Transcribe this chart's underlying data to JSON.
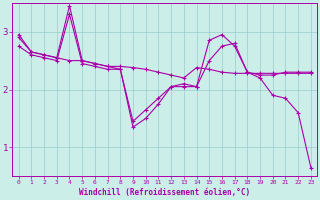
{
  "background_color": "#cceee8",
  "line_color": "#aa00aa",
  "xlabel": "Windchill (Refroidissement éolien,°C)",
  "xlabel_color": "#aa00aa",
  "tick_color": "#aa00aa",
  "grid_color": "#99cccc",
  "ylim": [
    0.5,
    3.5
  ],
  "xlim": [
    -0.5,
    23.5
  ],
  "yticks": [
    1,
    2,
    3
  ],
  "xticks": [
    0,
    1,
    2,
    3,
    4,
    5,
    6,
    7,
    8,
    9,
    10,
    11,
    12,
    13,
    14,
    15,
    16,
    17,
    18,
    19,
    20,
    21,
    22,
    23
  ],
  "series": [
    {
      "x": [
        0,
        1,
        2,
        3,
        4,
        5,
        6,
        7,
        8,
        9,
        10,
        11,
        12,
        13,
        14,
        15,
        16,
        17,
        18,
        19,
        20,
        21,
        22,
        23
      ],
      "y": [
        2.95,
        2.65,
        2.6,
        2.55,
        3.45,
        2.5,
        2.45,
        2.4,
        2.35,
        1.35,
        1.5,
        1.75,
        2.05,
        2.05,
        2.05,
        2.85,
        2.95,
        2.75,
        2.3,
        2.2,
        1.9,
        1.85,
        1.6,
        0.65
      ]
    },
    {
      "x": [
        0,
        1,
        2,
        3,
        4,
        5,
        6,
        7,
        8,
        9,
        10,
        11,
        12,
        13,
        14,
        15,
        16,
        17,
        18,
        19,
        20,
        21,
        22,
        23
      ],
      "y": [
        2.75,
        2.6,
        2.55,
        2.5,
        3.3,
        2.45,
        2.4,
        2.35,
        2.35,
        1.45,
        1.65,
        1.85,
        2.05,
        2.1,
        2.05,
        2.5,
        2.75,
        2.8,
        2.3,
        2.25,
        2.25,
        2.3,
        2.3,
        2.3
      ]
    },
    {
      "x": [
        0,
        1,
        2,
        3,
        4,
        5,
        6,
        7,
        8,
        9,
        10,
        11,
        12,
        13,
        14,
        15,
        16,
        17,
        18,
        19,
        20,
        21,
        22,
        23
      ],
      "y": [
        2.9,
        2.65,
        2.6,
        2.55,
        2.5,
        2.5,
        2.45,
        2.4,
        2.4,
        2.38,
        2.35,
        2.3,
        2.25,
        2.2,
        2.38,
        2.35,
        2.3,
        2.28,
        2.28,
        2.28,
        2.28,
        2.28,
        2.28,
        2.28
      ]
    }
  ]
}
